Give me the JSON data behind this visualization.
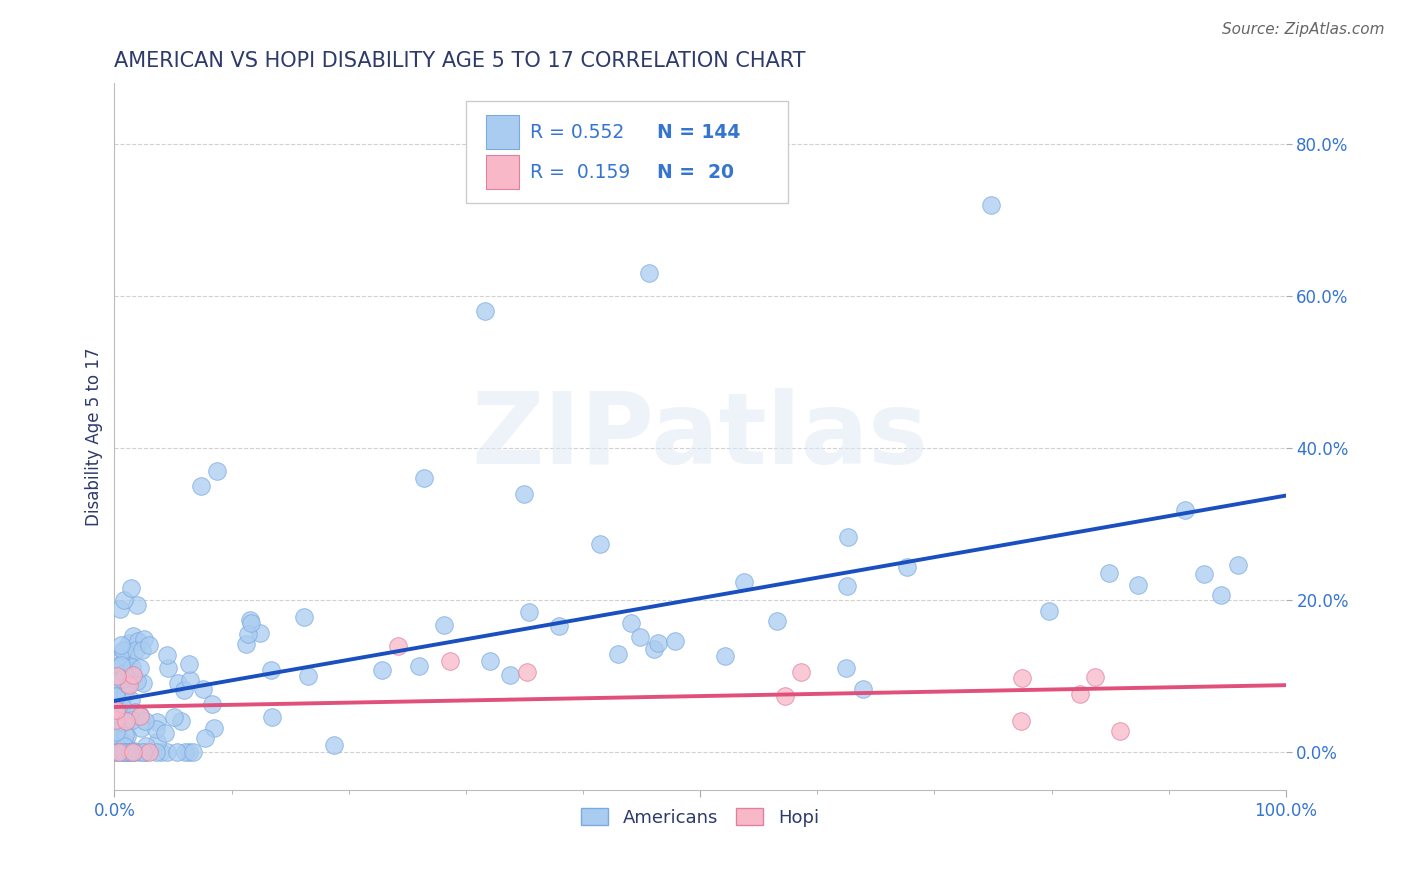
{
  "title": "AMERICAN VS HOPI DISABILITY AGE 5 TO 17 CORRELATION CHART",
  "source": "Source: ZipAtlas.com",
  "ylabel": "Disability Age 5 to 17",
  "title_color": "#2d3a6b",
  "axis_color": "#2d3a6b",
  "tick_label_color": "#3575d0",
  "grid_color": "#cccccc",
  "watermark_text": "ZIPatlas",
  "legend_r_american": "R = 0.552",
  "legend_n_american": "N = 144",
  "legend_r_hopi": "R =  0.159",
  "legend_n_hopi": "N =  20",
  "american_color": "#aaccf0",
  "american_edge": "#7aaae0",
  "hopi_color": "#f8b8c8",
  "hopi_edge": "#e080a0",
  "american_line_color": "#1a4fc0",
  "hopi_line_color": "#e0507a",
  "legend_text_color": "#3575d0",
  "ytick_vals": [
    0.0,
    0.2,
    0.4,
    0.6,
    0.8
  ],
  "ytick_labels": [
    "0.0%",
    "20.0%",
    "40.0%",
    "60.0%",
    "80.0%"
  ],
  "xtick_labels_left": "0.0%",
  "xtick_labels_right": "100.0%",
  "xlim": [
    0.0,
    1.0
  ],
  "ylim": [
    -0.05,
    0.88
  ]
}
